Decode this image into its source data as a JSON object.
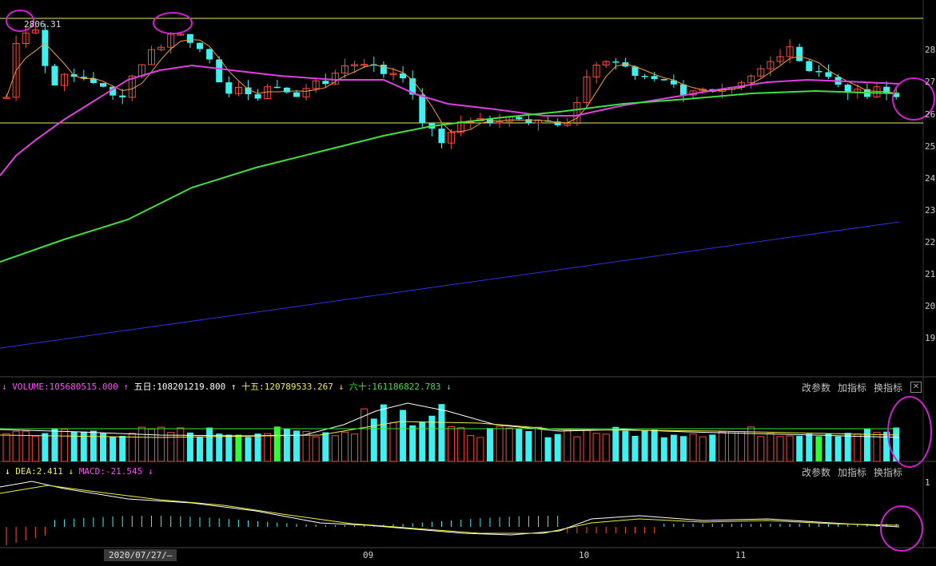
{
  "price_axis": [
    "28",
    "27",
    "26",
    "25",
    "24",
    "23",
    "22",
    "21",
    "20",
    "19"
  ],
  "high_marker": "2806.31",
  "volume_legend": {
    "arrow1": "↓",
    "volume": "VOLUME:105680515.000",
    "arrow2": "↑",
    "ma5": "五日:108201219.800",
    "arrow3": "↑",
    "ma10": "十五:120789533.267",
    "arrow4": "↓",
    "ma60": "六十:161186822.783",
    "arrow5": "↓"
  },
  "macd_legend": {
    "arrow1": "↓",
    "dea": "DEA:2.411",
    "arrow2": "↓",
    "macd": "MACD:-21.545",
    "arrow3": "↓"
  },
  "panel_buttons": {
    "modify_params": "改参数",
    "add_indicator": "加指标",
    "switch_indicator": "换指标",
    "close": "✕"
  },
  "macd_axis": [
    "1"
  ],
  "date_axis": {
    "selected": "2020/07/27/—",
    "labels": [
      "09",
      "10",
      "11"
    ]
  },
  "colors": {
    "up": "#ff4a3a",
    "down": "#3ff0f0",
    "ma_short": "#f0a040",
    "ma_mid": "#e040e0",
    "ma_long": "#40e040",
    "ma_very_long": "#3030e0",
    "support_line": "#e8e870",
    "circle": "#d020d0"
  },
  "chart_data": {
    "type": "candlestick",
    "note_series": [
      "price",
      "volume",
      "macd"
    ],
    "price_ylim": [
      18.7,
      28.8
    ],
    "support_resistance": [
      28.6,
      25.8
    ],
    "x_ticks": [
      "09",
      "10",
      "11"
    ]
  }
}
